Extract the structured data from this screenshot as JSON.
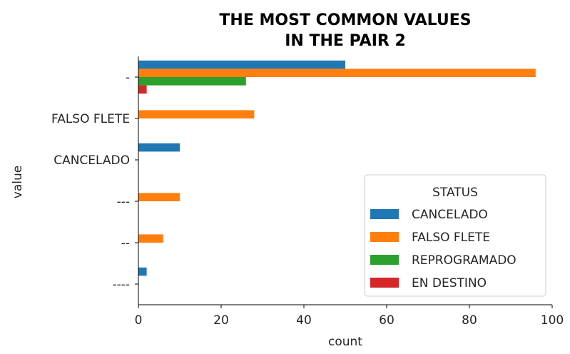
{
  "chart_data": {
    "type": "bar",
    "orientation": "horizontal",
    "title_lines": [
      "THE MOST COMMON VALUES",
      "IN THE PAIR 2"
    ],
    "xlabel": "count",
    "ylabel": "value",
    "xlim": [
      0,
      100
    ],
    "xticks": [
      0,
      20,
      40,
      60,
      80,
      100
    ],
    "categories": [
      "-",
      "FALSO FLETE",
      "CANCELADO",
      "---",
      "--",
      "----"
    ],
    "series": [
      {
        "name": "CANCELADO",
        "color": "#1f77b4",
        "values": [
          50,
          0,
          10,
          0,
          0,
          2
        ]
      },
      {
        "name": "FALSO FLETE",
        "color": "#ff7f0e",
        "values": [
          96,
          28,
          0,
          10,
          6,
          0
        ]
      },
      {
        "name": "REPROGRAMADO",
        "color": "#2ca02c",
        "values": [
          26,
          0,
          0,
          0,
          0,
          0
        ]
      },
      {
        "name": "EN DESTINO",
        "color": "#d62728",
        "values": [
          2,
          0,
          0,
          0,
          0,
          0
        ]
      }
    ],
    "legend": {
      "title": "STATUS",
      "placement": "lower-right"
    },
    "grid": false
  }
}
